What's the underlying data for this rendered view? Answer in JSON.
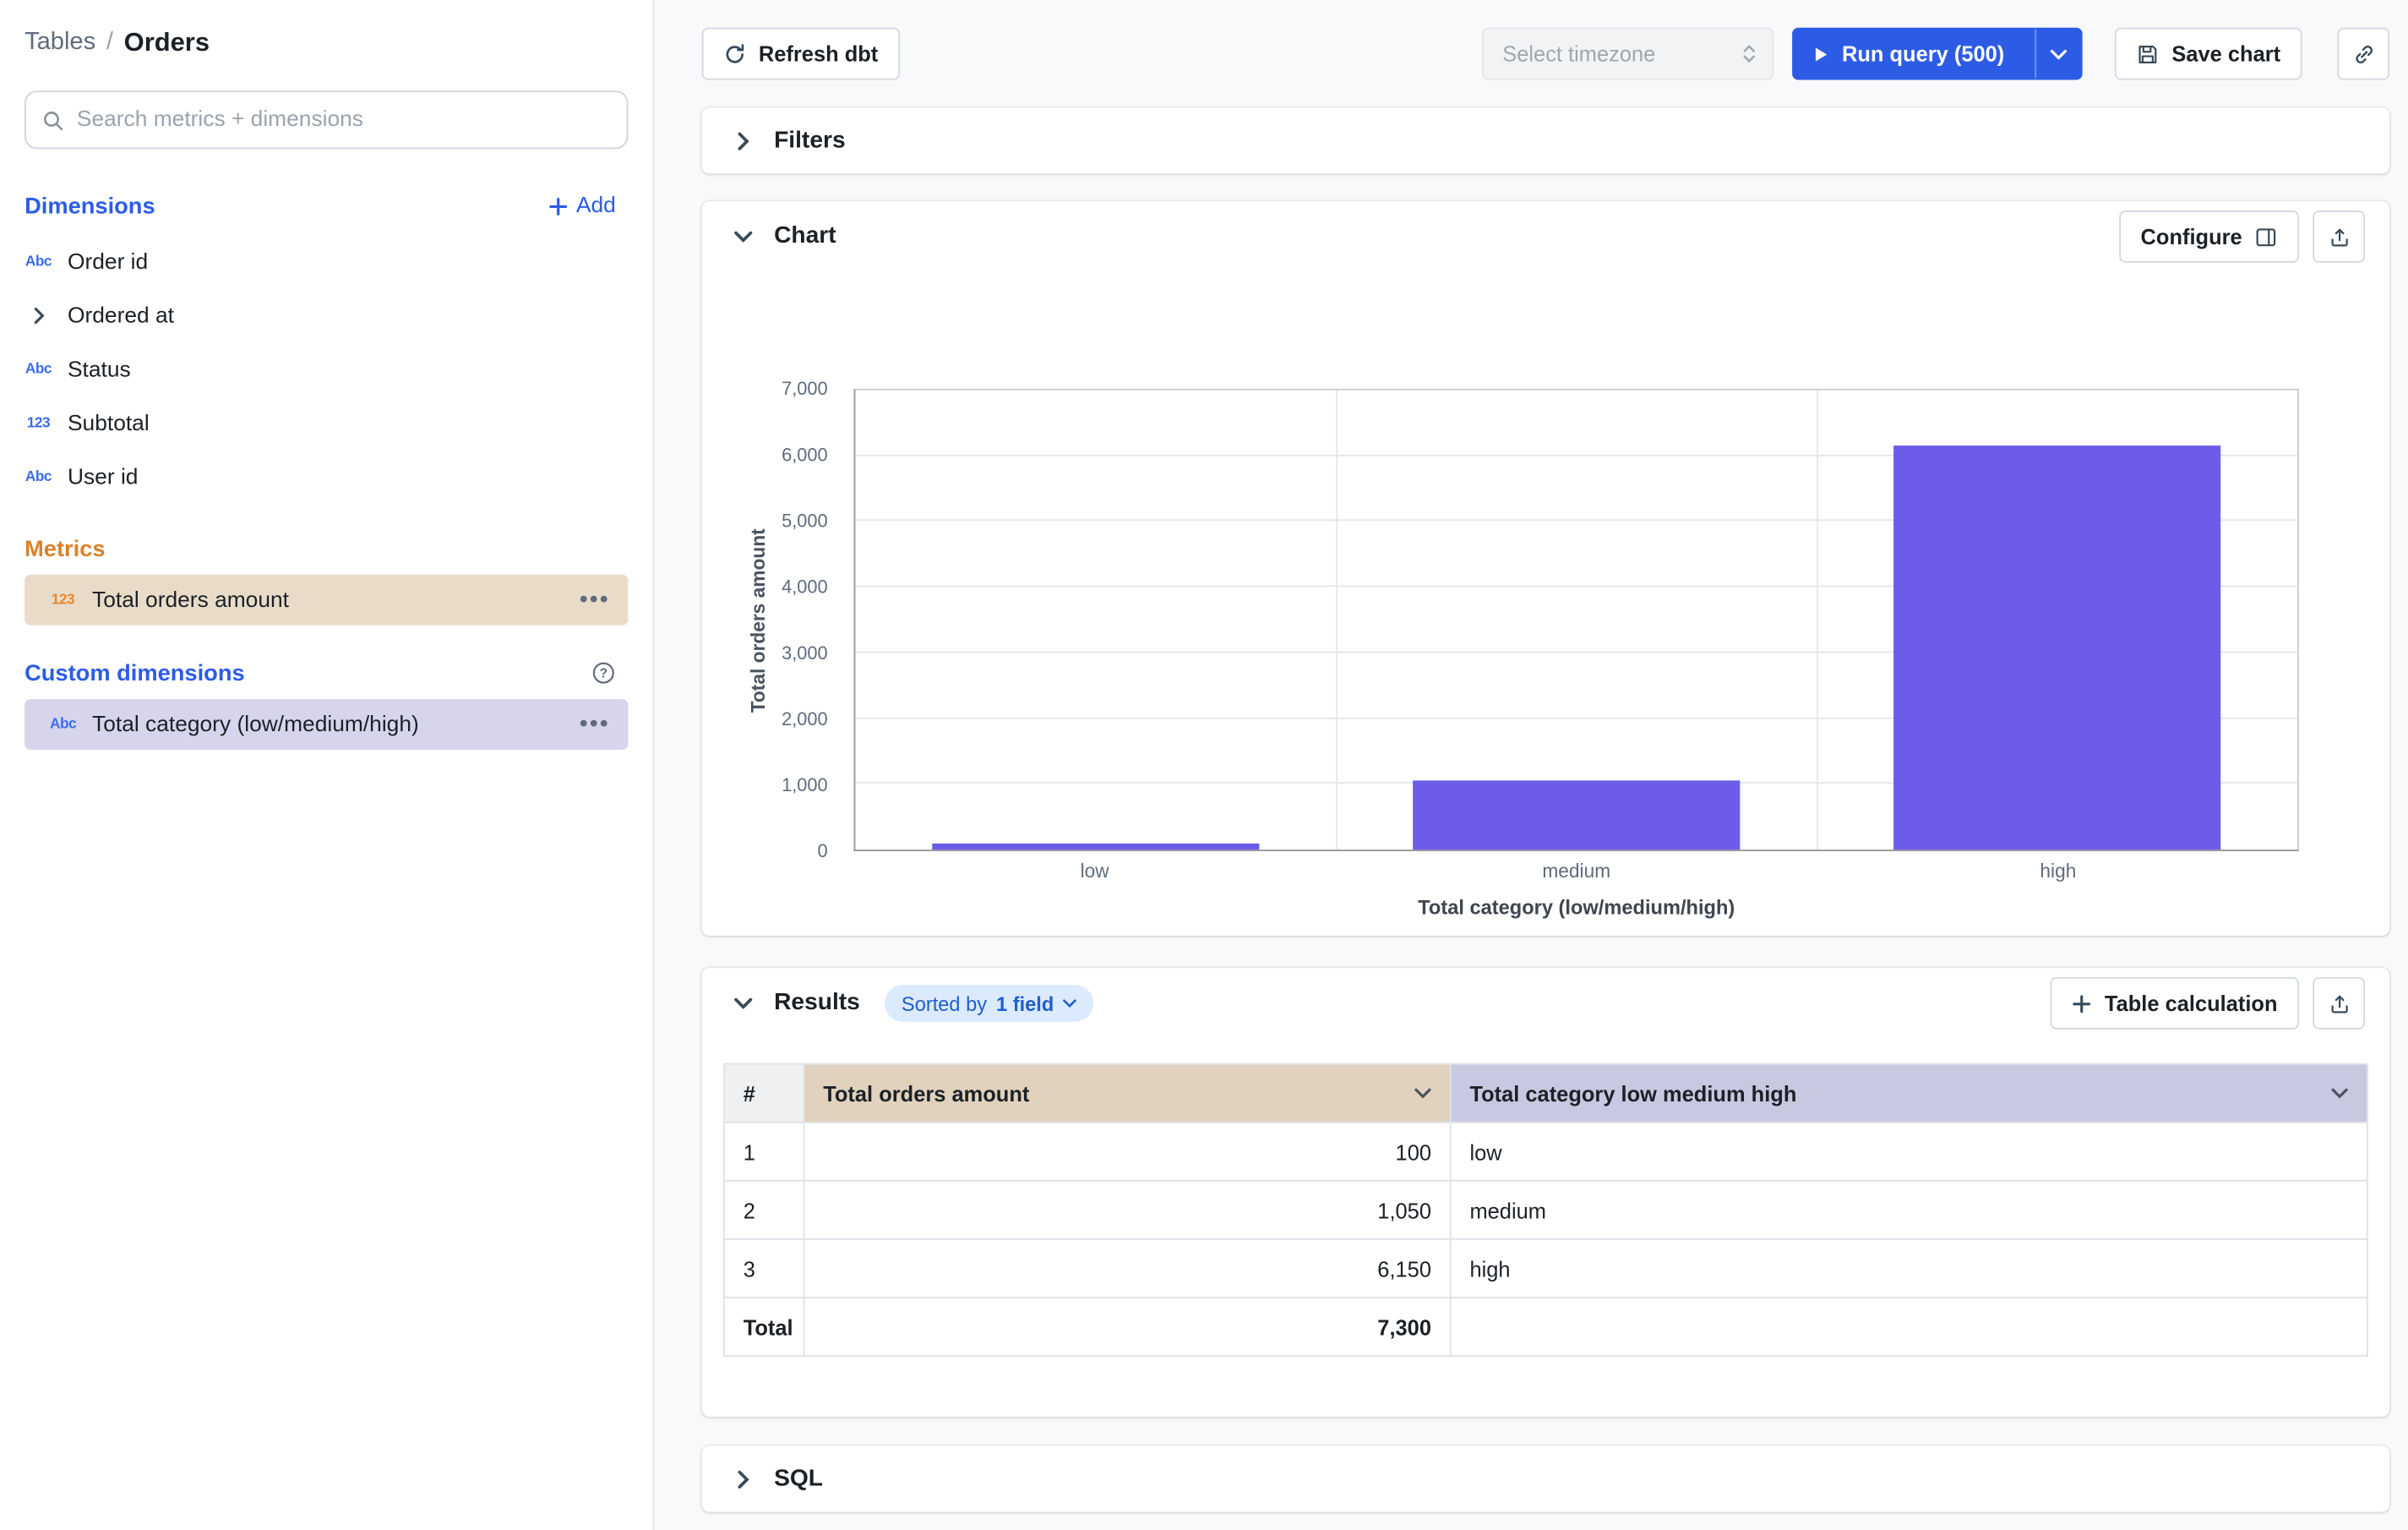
{
  "sidebar": {
    "breadcrumb": {
      "root": "Tables",
      "separator": "/",
      "current": "Orders"
    },
    "search_placeholder": "Search metrics + dimensions",
    "dimensions": {
      "title": "Dimensions",
      "add_label": "Add",
      "items": [
        {
          "icon": "abc",
          "label": "Order id"
        },
        {
          "icon": "chevron-right",
          "label": "Ordered at"
        },
        {
          "icon": "abc",
          "label": "Status"
        },
        {
          "icon": "123",
          "label": "Subtotal"
        },
        {
          "icon": "abc",
          "label": "User id"
        }
      ]
    },
    "metrics": {
      "title": "Metrics",
      "items": [
        {
          "icon": "123",
          "label": "Total orders amount"
        }
      ]
    },
    "custom_dimensions": {
      "title": "Custom dimensions",
      "items": [
        {
          "icon": "abc",
          "label": "Total category (low/medium/high)"
        }
      ]
    }
  },
  "toolbar": {
    "refresh_dbt": "Refresh dbt",
    "timezone_placeholder": "Select timezone",
    "run_query": "Run query (500)",
    "save_chart": "Save chart"
  },
  "sections": {
    "filters": "Filters",
    "chart": "Chart",
    "configure": "Configure",
    "results": "Results",
    "sorted_by_prefix": "Sorted by",
    "sorted_by_value": "1 field",
    "table_calculation": "Table calculation",
    "sql": "SQL"
  },
  "chart_data": {
    "type": "bar",
    "categories": [
      "low",
      "medium",
      "high"
    ],
    "values": [
      100,
      1050,
      6150
    ],
    "title": "",
    "xlabel": "Total category (low/medium/high)",
    "ylabel": "Total orders amount",
    "ylim": [
      0,
      7000
    ],
    "ytick_step": 1000,
    "bar_color": "#6d5ce8",
    "grid": true,
    "legend": false
  },
  "results_table": {
    "columns": {
      "index": "#",
      "amount": "Total orders amount",
      "category": "Total category low medium high"
    },
    "rows": [
      {
        "index": "1",
        "amount": "100",
        "category": "low"
      },
      {
        "index": "2",
        "amount": "1,050",
        "category": "medium"
      },
      {
        "index": "3",
        "amount": "6,150",
        "category": "high"
      }
    ],
    "total_label": "Total",
    "total_amount": "7,300"
  },
  "colors": {
    "accent_blue": "#2c5ce6",
    "metrics_orange": "#d9822b",
    "bar_purple": "#6d5ce8",
    "metric_highlight": "#e8dcc9",
    "dimension_highlight": "#d6d5ec",
    "amount_header": "#e0d2bc",
    "category_header": "#c9c8e1",
    "badge_bg": "#dbeafc"
  }
}
